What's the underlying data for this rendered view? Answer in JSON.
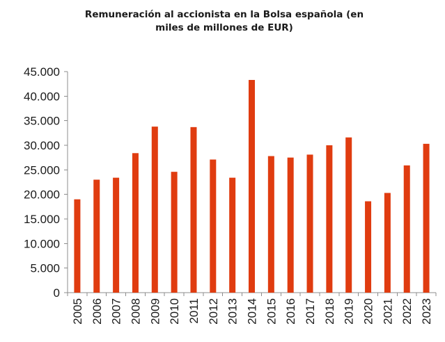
{
  "chart_data": {
    "type": "bar",
    "title_lines": [
      "Remuneración al accionista en la Bolsa española (en",
      "miles de millones de EUR)"
    ],
    "categories": [
      "2005",
      "2006",
      "2007",
      "2008",
      "2009",
      "2010",
      "2011",
      "2012",
      "2013",
      "2014",
      "2015",
      "2016",
      "2017",
      "2018",
      "2019",
      "2020",
      "2021",
      "2022",
      "2023"
    ],
    "values": [
      19000,
      23000,
      23400,
      28400,
      33800,
      24600,
      33700,
      27100,
      23400,
      43300,
      27800,
      27500,
      28100,
      30000,
      31600,
      18600,
      20300,
      25900,
      30300
    ],
    "ylim": [
      0,
      45000
    ],
    "y_ticks": [
      {
        "value": 0,
        "label": "0"
      },
      {
        "value": 5000,
        "label": "5.000"
      },
      {
        "value": 10000,
        "label": "10.000"
      },
      {
        "value": 15000,
        "label": "15.000"
      },
      {
        "value": 20000,
        "label": "20.000"
      },
      {
        "value": 25000,
        "label": "25.000"
      },
      {
        "value": 30000,
        "label": "30.000"
      },
      {
        "value": 35000,
        "label": "35.000"
      },
      {
        "value": 40000,
        "label": "40.000"
      },
      {
        "value": 45000,
        "label": "45.000"
      }
    ],
    "xlabel": "",
    "ylabel": "",
    "bar_color": "#e03c10",
    "grid": false,
    "legend": "none"
  }
}
